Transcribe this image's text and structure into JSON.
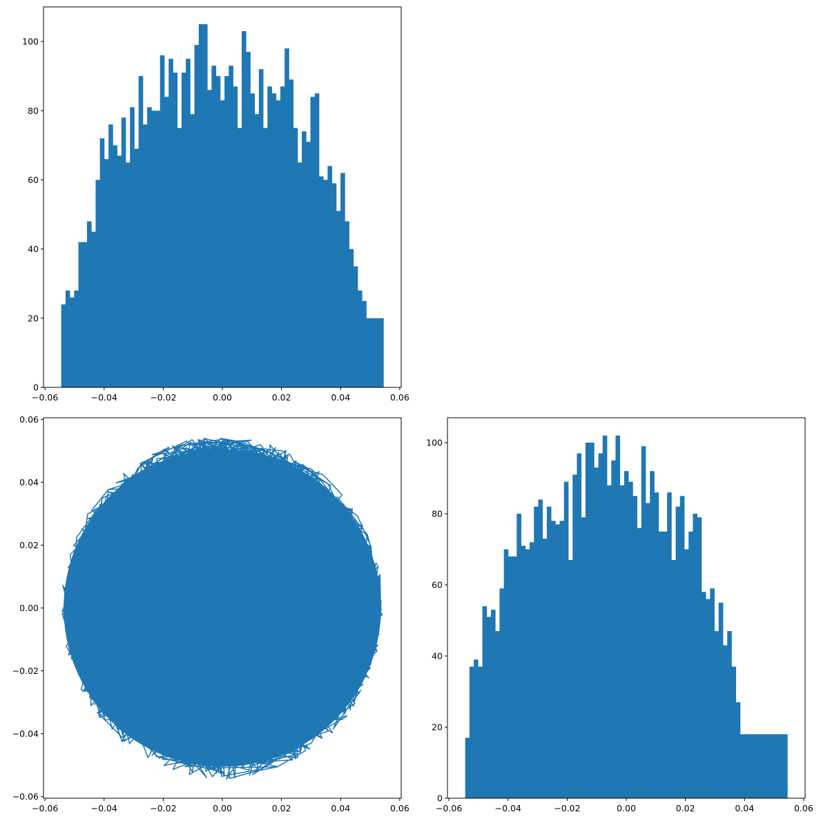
{
  "colors": {
    "series": "#1f77b4",
    "axes": "#000000",
    "background": "#ffffff"
  },
  "chart_data": [
    {
      "id": "hist-x",
      "type": "bar",
      "subtype": "histogram",
      "title": "",
      "xlabel": "",
      "ylabel": "",
      "xlim": [
        -0.0605,
        0.0605
      ],
      "ylim": [
        0,
        110
      ],
      "bins": {
        "start": -0.0545,
        "end": 0.0545,
        "count": 75
      },
      "values": [
        24,
        28,
        26,
        28,
        42,
        42,
        48,
        45,
        60,
        72,
        66,
        76,
        70,
        67,
        78,
        65,
        81,
        69,
        90,
        76,
        81,
        80,
        80,
        96,
        84,
        95,
        91,
        75,
        91,
        95,
        79,
        99,
        105,
        105,
        86,
        93,
        90,
        83,
        90,
        93,
        87,
        75,
        103,
        97,
        85,
        79,
        92,
        75,
        87,
        85,
        83,
        87,
        98,
        89,
        75,
        65,
        74,
        71,
        84,
        85,
        61,
        60,
        64,
        59,
        51,
        62,
        48,
        40,
        35,
        28,
        25,
        20,
        20,
        20,
        20
      ],
      "xticks": [
        -0.06,
        -0.04,
        -0.02,
        0.0,
        0.02,
        0.04,
        0.06
      ],
      "xtick_labels": [
        "−0.06",
        "−0.04",
        "−0.02",
        "0.00",
        "0.02",
        "0.04",
        "0.06"
      ],
      "yticks": [
        0,
        20,
        40,
        60,
        80,
        100
      ],
      "ytick_labels": [
        "0",
        "20",
        "40",
        "60",
        "80",
        "100"
      ]
    },
    {
      "id": "trajectory",
      "type": "line",
      "title": "",
      "xlabel": "",
      "ylabel": "",
      "xlim": [
        -0.0605,
        0.0605
      ],
      "ylim": [
        -0.0605,
        0.0605
      ],
      "approx_radius": 0.0545,
      "note": "Dense random walk filling a disk of radius ~0.0545 centered at the origin",
      "xticks": [
        -0.06,
        -0.04,
        -0.02,
        0.0,
        0.02,
        0.04,
        0.06
      ],
      "xtick_labels": [
        "−0.06",
        "−0.04",
        "−0.02",
        "0.00",
        "0.02",
        "0.04",
        "0.06"
      ],
      "yticks": [
        -0.06,
        -0.04,
        -0.02,
        0.0,
        0.02,
        0.04,
        0.06
      ],
      "ytick_labels": [
        "−0.06",
        "−0.04",
        "−0.02",
        "0.00",
        "0.02",
        "0.04",
        "0.06"
      ]
    },
    {
      "id": "hist-y",
      "type": "bar",
      "subtype": "histogram",
      "title": "",
      "xlabel": "",
      "ylabel": "",
      "xlim": [
        -0.0605,
        0.0605
      ],
      "ylim": [
        0,
        107
      ],
      "bins": {
        "start": -0.0545,
        "end": 0.0545,
        "count": 75
      },
      "values": [
        17,
        37,
        39,
        37,
        54,
        51,
        53,
        47,
        59,
        70,
        68,
        68,
        80,
        71,
        70,
        72,
        82,
        84,
        73,
        82,
        78,
        77,
        78,
        89,
        67,
        91,
        97,
        79,
        100,
        100,
        93,
        97,
        102,
        88,
        95,
        102,
        88,
        92,
        89,
        85,
        76,
        99,
        83,
        92,
        86,
        75,
        75,
        86,
        67,
        82,
        85,
        70,
        75,
        80,
        79,
        58,
        56,
        59,
        47,
        55,
        43,
        47,
        37,
        27,
        18,
        18,
        18,
        18,
        18,
        18,
        18,
        18,
        18,
        18,
        18
      ]
    }
  ],
  "tick_labels_hist_y": {
    "xtick_labels": [
      "−0.06",
      "−0.04",
      "−0.02",
      "0.00",
      "0.02",
      "0.04",
      "0.06"
    ],
    "ytick_labels": [
      "0",
      "20",
      "40",
      "60",
      "80",
      "100"
    ]
  }
}
